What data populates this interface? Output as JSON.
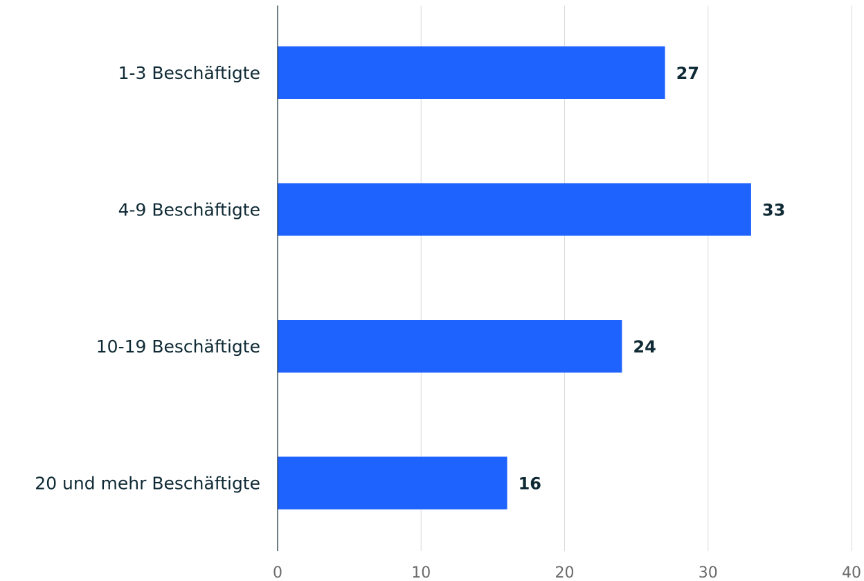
{
  "chart_data": {
    "type": "bar",
    "orientation": "horizontal",
    "categories": [
      "1-3 Beschäftigte",
      "4-9 Beschäftigte",
      "10-19 Beschäftigte",
      "20 und mehr Beschäftigte"
    ],
    "values": [
      27,
      33,
      24,
      16
    ],
    "value_labels": [
      "27",
      "33",
      "24",
      "16"
    ],
    "x_ticks": [
      0,
      10,
      20,
      30,
      40
    ],
    "x_tick_labels": [
      "0",
      "10",
      "20",
      "30",
      "40"
    ],
    "xlim": [
      0,
      40
    ],
    "grid": true,
    "bar_color": "#1f63ff",
    "text_color": "#0f2a35",
    "grid_color": "#d9d9d9"
  }
}
